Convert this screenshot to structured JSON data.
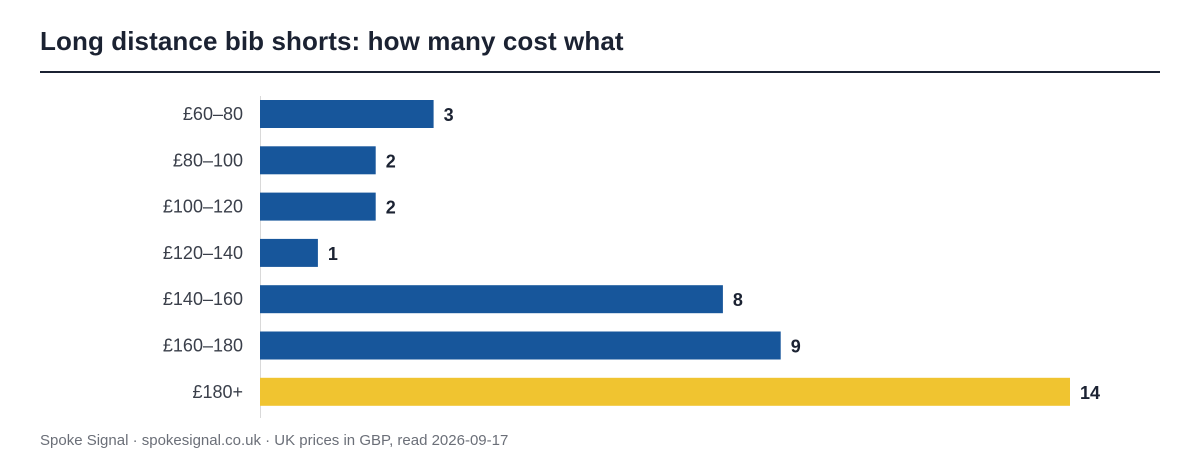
{
  "title": "Long distance bib shorts: how many cost what",
  "footer": "Spoke Signal · spokesignal.co.uk · UK prices in GBP, read 2026-09-17",
  "colors": {
    "bar": "#17569b",
    "highlight": "#f0c430",
    "text": "#1b2232",
    "axis": "#d9d9d9"
  },
  "chart_data": {
    "type": "bar",
    "orientation": "horizontal",
    "categories": [
      "£60–80",
      "£80–100",
      "£100–120",
      "£120–140",
      "£140–160",
      "£160–180",
      "£180+"
    ],
    "values": [
      3,
      2,
      2,
      1,
      8,
      9,
      14
    ],
    "highlight_category": "£180+",
    "xlim": [
      0,
      14
    ],
    "grid": false,
    "legend": "none"
  }
}
